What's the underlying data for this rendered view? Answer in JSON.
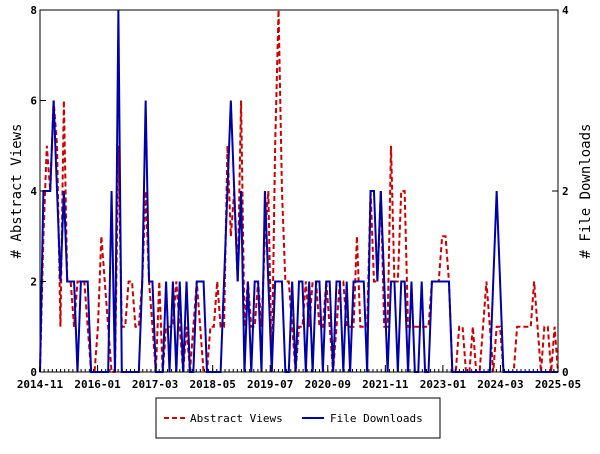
{
  "chart_data": {
    "type": "line",
    "title": "",
    "x_ticks": [
      "2014-11",
      "2016-01",
      "2017-03",
      "2018-05",
      "2019-07",
      "2020-09",
      "2021-11",
      "2023-01",
      "2024-03",
      "2025-05"
    ],
    "x_range": [
      "2014-11",
      "2025-05"
    ],
    "y_left": {
      "label": "# Abstract Views",
      "ticks": [
        0,
        2,
        4,
        6,
        8
      ],
      "range": [
        0,
        8
      ]
    },
    "y_right": {
      "label": "# File Downloads",
      "ticks": [
        0,
        2,
        4
      ],
      "range": [
        0,
        4
      ]
    },
    "grid": false,
    "legend_position": "bottom",
    "series": [
      {
        "name": "Abstract Views",
        "axis": "left",
        "style": "dashed",
        "color": "#cc0000",
        "values": [
          0,
          3,
          5,
          4,
          6,
          5,
          1,
          6,
          2,
          2,
          1,
          2,
          2,
          2,
          1,
          0,
          0,
          1,
          3,
          2,
          1,
          0,
          0,
          5,
          1,
          1,
          2,
          2,
          1,
          1,
          2,
          4,
          2,
          1,
          0,
          2,
          0,
          1,
          1,
          1,
          2,
          1,
          0,
          1,
          0,
          1,
          2,
          1,
          0,
          0,
          1,
          1,
          2,
          1,
          1,
          5,
          3,
          4,
          2,
          6,
          1,
          2,
          1,
          1,
          2,
          1,
          3,
          4,
          0,
          5,
          8,
          4,
          2,
          2,
          1,
          0,
          1,
          1,
          2,
          1,
          2,
          2,
          1,
          1,
          2,
          1,
          0,
          1,
          2,
          2,
          1,
          1,
          1,
          3,
          1,
          1,
          1,
          4,
          2,
          2,
          4,
          1,
          1,
          5,
          2,
          2,
          4,
          4,
          1,
          1,
          1,
          1,
          1,
          1,
          1,
          2,
          2,
          2,
          3,
          3,
          2,
          0,
          0,
          1,
          1,
          0,
          0,
          1,
          0,
          0,
          1,
          2,
          1,
          0,
          1,
          1,
          0,
          0,
          0,
          0,
          1,
          1,
          1,
          1,
          1,
          2,
          1,
          0,
          1,
          1,
          0,
          1,
          0
        ]
      },
      {
        "name": "File Downloads",
        "axis": "right",
        "style": "solid",
        "color": "#0000aa",
        "values": [
          0,
          2,
          2,
          2,
          3,
          2,
          1,
          2,
          1,
          1,
          1,
          0,
          1,
          1,
          1,
          0,
          0,
          0,
          0,
          0,
          0,
          2,
          0,
          4,
          0,
          0,
          0,
          0,
          0,
          0,
          1,
          3,
          1,
          1,
          0,
          0,
          0,
          1,
          0,
          1,
          0,
          1,
          0,
          1,
          0,
          0,
          1,
          1,
          1,
          0,
          0,
          0,
          0,
          0,
          1,
          2,
          3,
          2,
          1,
          2,
          0,
          1,
          0,
          1,
          1,
          0,
          2,
          1,
          0,
          1,
          1,
          1,
          0,
          0,
          1,
          0,
          1,
          1,
          0,
          1,
          0,
          1,
          1,
          0,
          1,
          1,
          0,
          1,
          1,
          0,
          1,
          0,
          1,
          1,
          1,
          1,
          0,
          2,
          2,
          1,
          2,
          1,
          0,
          1,
          1,
          0,
          1,
          1,
          0,
          1,
          0,
          0,
          1,
          0,
          0,
          1,
          1,
          1,
          1,
          1,
          1,
          0,
          0,
          0,
          0,
          0,
          0,
          0,
          0,
          0,
          0,
          0,
          0,
          1,
          2,
          1,
          0,
          0,
          0,
          0,
          0,
          0,
          0,
          0,
          0,
          0,
          0,
          0,
          0,
          0,
          0,
          0,
          0
        ]
      }
    ]
  }
}
